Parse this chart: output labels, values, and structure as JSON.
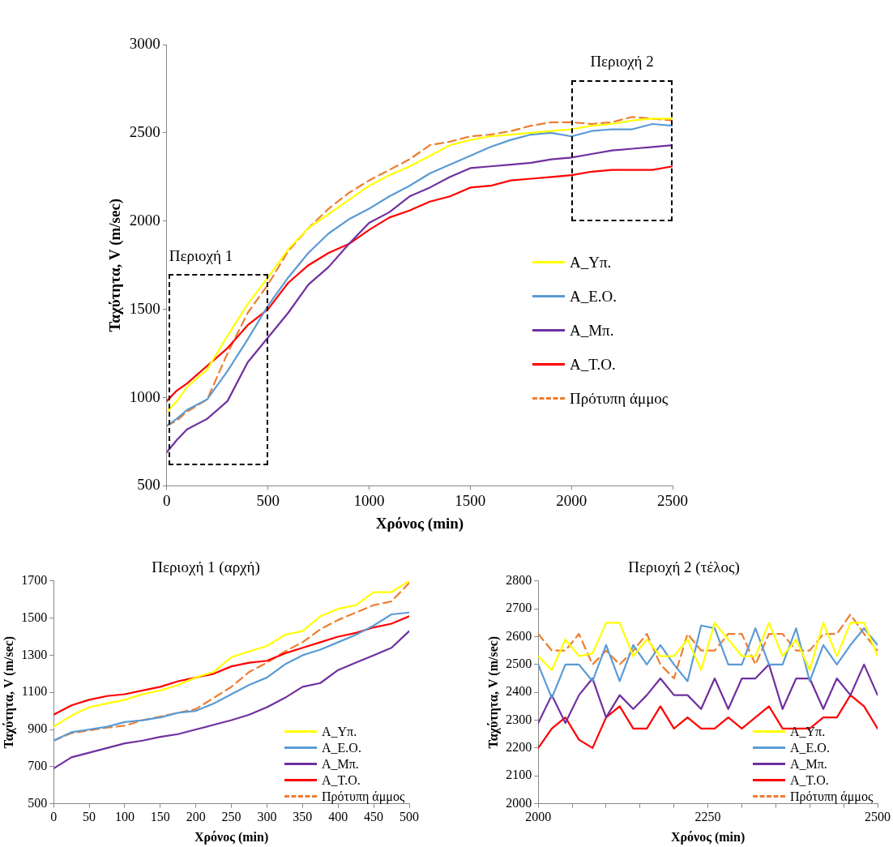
{
  "chart_data": [
    {
      "type": "line",
      "xlabel": "Χρόνος (min)",
      "ylabel": "Ταχύτητα, V (m/sec)",
      "legend": "right",
      "marker": "none",
      "x": [
        0,
        50,
        100,
        200,
        300,
        400,
        500,
        600,
        700,
        800,
        900,
        1000,
        1100,
        1200,
        1300,
        1400,
        1500,
        1600,
        1700,
        1800,
        1900,
        2000,
        2100,
        2200,
        2300,
        2400,
        2500
      ],
      "series": [
        {
          "name": "A_Yπ.",
          "color": "#ffff00",
          "values": [
            920,
            980,
            1060,
            1160,
            1350,
            1530,
            1680,
            1840,
            1960,
            2040,
            2120,
            2200,
            2260,
            2310,
            2370,
            2430,
            2460,
            2480,
            2490,
            2500,
            2510,
            2520,
            2540,
            2550,
            2570,
            2580,
            2580
          ]
        },
        {
          "name": "A_E.O.",
          "color": "#5b9bd5",
          "values": [
            840,
            880,
            930,
            990,
            1150,
            1330,
            1520,
            1680,
            1820,
            1930,
            2010,
            2070,
            2140,
            2200,
            2270,
            2320,
            2370,
            2420,
            2460,
            2490,
            2500,
            2480,
            2510,
            2520,
            2520,
            2550,
            2540
          ]
        },
        {
          "name": "A_Mπ.",
          "color": "#7030a0",
          "values": [
            690,
            760,
            820,
            880,
            980,
            1200,
            1340,
            1480,
            1640,
            1740,
            1870,
            1990,
            2050,
            2140,
            2190,
            2250,
            2300,
            2310,
            2320,
            2330,
            2350,
            2360,
            2380,
            2400,
            2410,
            2420,
            2430
          ]
        },
        {
          "name": "A_T.O.",
          "color": "#ff0000",
          "values": [
            980,
            1040,
            1080,
            1180,
            1280,
            1410,
            1500,
            1650,
            1750,
            1820,
            1870,
            1950,
            2020,
            2060,
            2110,
            2140,
            2190,
            2200,
            2230,
            2240,
            2250,
            2260,
            2280,
            2290,
            2290,
            2290,
            2310
          ]
        },
        {
          "name": "Πρότυπη άμμος",
          "color": "#ed7d31",
          "line_style": "dashed",
          "values": [
            840,
            870,
            920,
            990,
            1250,
            1480,
            1640,
            1830,
            1960,
            2070,
            2160,
            2230,
            2290,
            2350,
            2430,
            2450,
            2480,
            2490,
            2510,
            2540,
            2560,
            2560,
            2550,
            2560,
            2590,
            2580,
            2570
          ]
        }
      ],
      "xlim": [
        0,
        2500
      ],
      "xticks": [
        0,
        500,
        1000,
        1500,
        2000,
        2500
      ],
      "ylim": [
        500,
        3000
      ],
      "yticks": [
        500,
        1000,
        1500,
        2000,
        2500,
        3000
      ],
      "annotations": [
        "Περιοχή 1",
        "Περιοχή 2"
      ]
    },
    {
      "type": "line",
      "title": "Περιοχή 1 (αρχή)",
      "xlabel": "Χρόνος (min)",
      "ylabel": "Ταχύτητα, V (m/sec)",
      "legend": "bottom right",
      "marker": "none",
      "x": [
        0,
        25,
        50,
        75,
        100,
        125,
        150,
        175,
        200,
        225,
        250,
        275,
        300,
        325,
        350,
        375,
        400,
        425,
        450,
        475,
        500
      ],
      "series": [
        {
          "name": "A_Yπ.",
          "color": "#ffff00",
          "values": [
            915,
            975,
            1020,
            1040,
            1060,
            1090,
            1110,
            1140,
            1180,
            1210,
            1290,
            1320,
            1350,
            1410,
            1430,
            1510,
            1550,
            1570,
            1640,
            1640,
            1700
          ]
        },
        {
          "name": "A_E.O.",
          "color": "#5b9bd5",
          "values": [
            840,
            885,
            900,
            915,
            940,
            950,
            965,
            990,
            1000,
            1040,
            1090,
            1140,
            1180,
            1250,
            1300,
            1330,
            1370,
            1410,
            1460,
            1520,
            1530
          ]
        },
        {
          "name": "A_Mπ.",
          "color": "#7030a0",
          "values": [
            690,
            750,
            775,
            800,
            825,
            840,
            860,
            875,
            900,
            925,
            950,
            980,
            1020,
            1070,
            1130,
            1150,
            1220,
            1260,
            1300,
            1340,
            1430
          ]
        },
        {
          "name": "A_T.O.",
          "color": "#ff0000",
          "values": [
            980,
            1030,
            1060,
            1080,
            1090,
            1110,
            1130,
            1160,
            1180,
            1200,
            1240,
            1260,
            1270,
            1310,
            1340,
            1370,
            1400,
            1420,
            1450,
            1470,
            1510
          ]
        },
        {
          "name": "Πρότυπη άμμος",
          "color": "#ed7d31",
          "line_style": "dashed",
          "values": [
            840,
            880,
            895,
            910,
            920,
            950,
            970,
            990,
            1010,
            1070,
            1130,
            1210,
            1260,
            1320,
            1370,
            1440,
            1490,
            1530,
            1570,
            1590,
            1690
          ]
        }
      ],
      "xlim": [
        0,
        500
      ],
      "xticks": [
        0,
        50,
        100,
        150,
        200,
        250,
        300,
        350,
        400,
        450,
        500
      ],
      "ylim": [
        500,
        1700
      ],
      "yticks": [
        500,
        700,
        900,
        1100,
        1300,
        1500,
        1700
      ]
    },
    {
      "type": "line",
      "title": "Περιοχή 2 (τέλος)",
      "xlabel": "Χρόνος (min)",
      "ylabel": "Ταχύτητα, V (m/sec)",
      "legend": "bottom right",
      "marker": "none",
      "x": [
        2000,
        2020,
        2040,
        2060,
        2080,
        2100,
        2120,
        2140,
        2160,
        2180,
        2200,
        2220,
        2240,
        2260,
        2280,
        2300,
        2320,
        2340,
        2360,
        2380,
        2400,
        2420,
        2440,
        2460,
        2480,
        2500
      ],
      "series": [
        {
          "name": "A_Yπ.",
          "color": "#ffff00",
          "values": [
            2530,
            2480,
            2590,
            2530,
            2540,
            2650,
            2650,
            2530,
            2590,
            2530,
            2530,
            2590,
            2480,
            2650,
            2590,
            2530,
            2530,
            2650,
            2530,
            2590,
            2480,
            2650,
            2530,
            2650,
            2650,
            2530
          ]
        },
        {
          "name": "A_E.O.",
          "color": "#5b9bd5",
          "values": [
            2500,
            2380,
            2500,
            2500,
            2440,
            2570,
            2440,
            2570,
            2500,
            2570,
            2500,
            2440,
            2640,
            2630,
            2500,
            2500,
            2630,
            2500,
            2500,
            2630,
            2440,
            2570,
            2500,
            2570,
            2630,
            2570
          ]
        },
        {
          "name": "A_Mπ.",
          "color": "#7030a0",
          "values": [
            2290,
            2390,
            2290,
            2390,
            2450,
            2310,
            2390,
            2340,
            2390,
            2450,
            2390,
            2390,
            2340,
            2450,
            2340,
            2450,
            2450,
            2500,
            2340,
            2450,
            2450,
            2340,
            2450,
            2390,
            2500,
            2390
          ]
        },
        {
          "name": "A_T.O.",
          "color": "#ff0000",
          "values": [
            2200,
            2270,
            2310,
            2230,
            2200,
            2310,
            2350,
            2270,
            2270,
            2350,
            2270,
            2310,
            2270,
            2270,
            2310,
            2270,
            2310,
            2350,
            2270,
            2270,
            2270,
            2310,
            2310,
            2390,
            2350,
            2270
          ]
        },
        {
          "name": "Πρότυπη άμμος",
          "color": "#ed7d31",
          "line_style": "dashed",
          "values": [
            2610,
            2550,
            2550,
            2610,
            2500,
            2550,
            2500,
            2550,
            2610,
            2500,
            2450,
            2610,
            2550,
            2550,
            2610,
            2610,
            2500,
            2610,
            2610,
            2550,
            2550,
            2610,
            2610,
            2680,
            2610,
            2550
          ]
        }
      ],
      "xlim": [
        2000,
        2500
      ],
      "xticks": [
        2000,
        {
          "value": 2050,
          "label": null
        },
        {
          "value": 2100,
          "label": null
        },
        {
          "value": 2150,
          "label": null
        },
        {
          "value": 2200,
          "label": null
        },
        2250,
        {
          "value": 2300,
          "label": null
        },
        {
          "value": 2350,
          "label": null
        },
        {
          "value": 2400,
          "label": null
        },
        {
          "value": 2450,
          "label": null
        },
        2500
      ],
      "ylim": [
        2000,
        2800
      ],
      "yticks": [
        2000,
        2100,
        2200,
        2300,
        2400,
        2500,
        2600,
        2700,
        2800
      ]
    }
  ]
}
